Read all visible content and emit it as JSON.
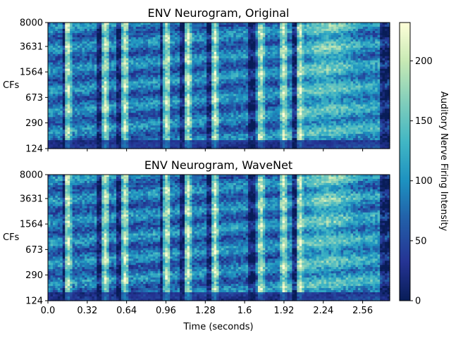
{
  "chart_data": {
    "type": "heatmap",
    "colormap": "YlGnBu_r",
    "panels": [
      {
        "title": "ENV Neurogram, Original",
        "ylabel": "CFs"
      },
      {
        "title": "ENV Neurogram, WaveNet",
        "ylabel": "CFs"
      }
    ],
    "y_ticks": [
      "8000",
      "3631",
      "1564",
      "673",
      "290",
      "124"
    ],
    "x_ticks": [
      "0.0",
      "0.32",
      "0.64",
      "0.96",
      "1.28",
      "1.6",
      "1.92",
      "2.24",
      "2.56"
    ],
    "xlabel": "Time (seconds)",
    "xlim": [
      0,
      2.78
    ],
    "y_scale": "log",
    "ylim": [
      124,
      8000
    ],
    "colorbar": {
      "label": "Auditory Nerve Firing Intensity",
      "ticks": [
        "0",
        "50",
        "100",
        "150",
        "200"
      ],
      "range": [
        0,
        232
      ]
    }
  }
}
